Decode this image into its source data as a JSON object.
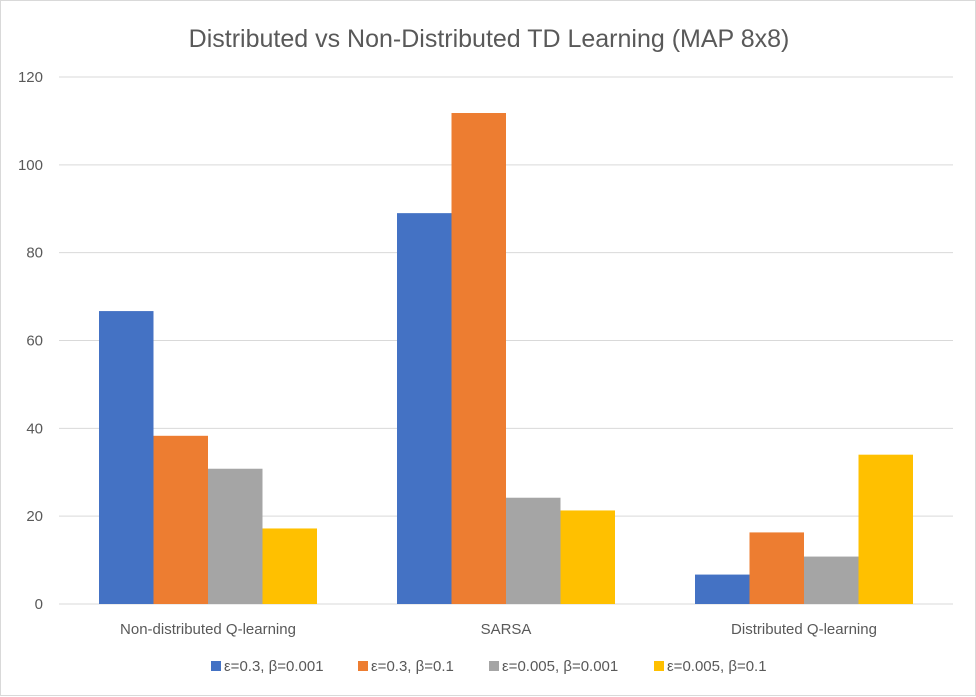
{
  "chart_data": {
    "type": "bar",
    "title": "Distributed vs Non-Distributed TD Learning (MAP 8x8)",
    "xlabel": "",
    "ylabel": "",
    "categories": [
      "Non-distributed Q-learning",
      "SARSA",
      "Distributed Q-learning"
    ],
    "series": [
      {
        "name": "ε=0.3, β=0.001",
        "color": "#4472C4",
        "values": [
          66.7,
          89.0,
          6.7
        ]
      },
      {
        "name": "ε=0.3, β=0.1",
        "color": "#ED7D31",
        "values": [
          38.3,
          111.8,
          16.3
        ]
      },
      {
        "name": "ε=0.005, β=0.001",
        "color": "#A5A5A5",
        "values": [
          30.8,
          24.2,
          10.8
        ]
      },
      {
        "name": "ε=0.005, β=0.1",
        "color": "#FFC000",
        "values": [
          17.2,
          21.3,
          34.0
        ]
      }
    ],
    "ylim": [
      0,
      120
    ],
    "yticks": [
      "0",
      "20",
      "40",
      "60",
      "80",
      "100",
      "120"
    ],
    "grid": true,
    "legend_position": "bottom"
  }
}
